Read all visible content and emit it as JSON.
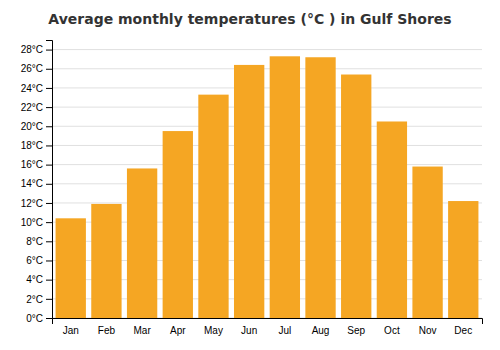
{
  "chart_data": {
    "type": "bar",
    "title": "Average monthly temperatures (°C ) in Gulf Shores",
    "categories": [
      "Jan",
      "Feb",
      "Mar",
      "Apr",
      "May",
      "Jun",
      "Jul",
      "Aug",
      "Sep",
      "Oct",
      "Nov",
      "Dec"
    ],
    "values": [
      10.4,
      11.9,
      15.6,
      19.5,
      23.3,
      26.4,
      27.3,
      27.2,
      25.4,
      20.5,
      15.8,
      12.2
    ],
    "color": "#F5A623",
    "ylim": [
      0,
      29
    ],
    "yticks": [
      {
        "value": 0,
        "label": "0°C"
      },
      {
        "value": 2,
        "label": "2°C"
      },
      {
        "value": 4,
        "label": "4°C"
      },
      {
        "value": 6,
        "label": "6°C"
      },
      {
        "value": 8,
        "label": "8°C"
      },
      {
        "value": 10,
        "label": "10°C"
      },
      {
        "value": 12,
        "label": "12°C"
      },
      {
        "value": 14,
        "label": "14°C"
      },
      {
        "value": 16,
        "label": "16°C"
      },
      {
        "value": 18,
        "label": "18°C"
      },
      {
        "value": 20,
        "label": "20°C"
      },
      {
        "value": 22,
        "label": "22°C"
      },
      {
        "value": 24,
        "label": "24°C"
      },
      {
        "value": 26,
        "label": "26°C"
      },
      {
        "value": 28,
        "label": "28°C"
      }
    ],
    "grid": true
  }
}
